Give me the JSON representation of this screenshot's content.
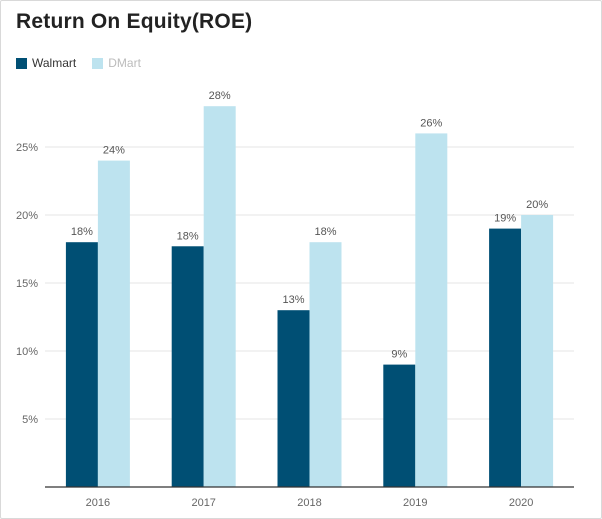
{
  "chart_data": {
    "type": "bar",
    "title": "Return On Equity(ROE)",
    "categories": [
      "2016",
      "2017",
      "2018",
      "2019",
      "2020"
    ],
    "series": [
      {
        "name": "Walmart",
        "color": "#004f74",
        "values": [
          18,
          17.7,
          13,
          9,
          19
        ],
        "labels": [
          "18%",
          "18%",
          "13%",
          "9%",
          "19%"
        ]
      },
      {
        "name": "DMart",
        "color": "#bde3ef",
        "values": [
          24,
          28,
          18,
          26,
          20
        ],
        "labels": [
          "24%",
          "28%",
          "18%",
          "26%",
          "20%"
        ]
      }
    ],
    "yticks": [
      5,
      10,
      15,
      20,
      25
    ],
    "ytick_labels": [
      "5%",
      "10%",
      "15%",
      "20%",
      "25%"
    ],
    "ylim": [
      0,
      30
    ],
    "grid": true,
    "legend": "top-left"
  }
}
